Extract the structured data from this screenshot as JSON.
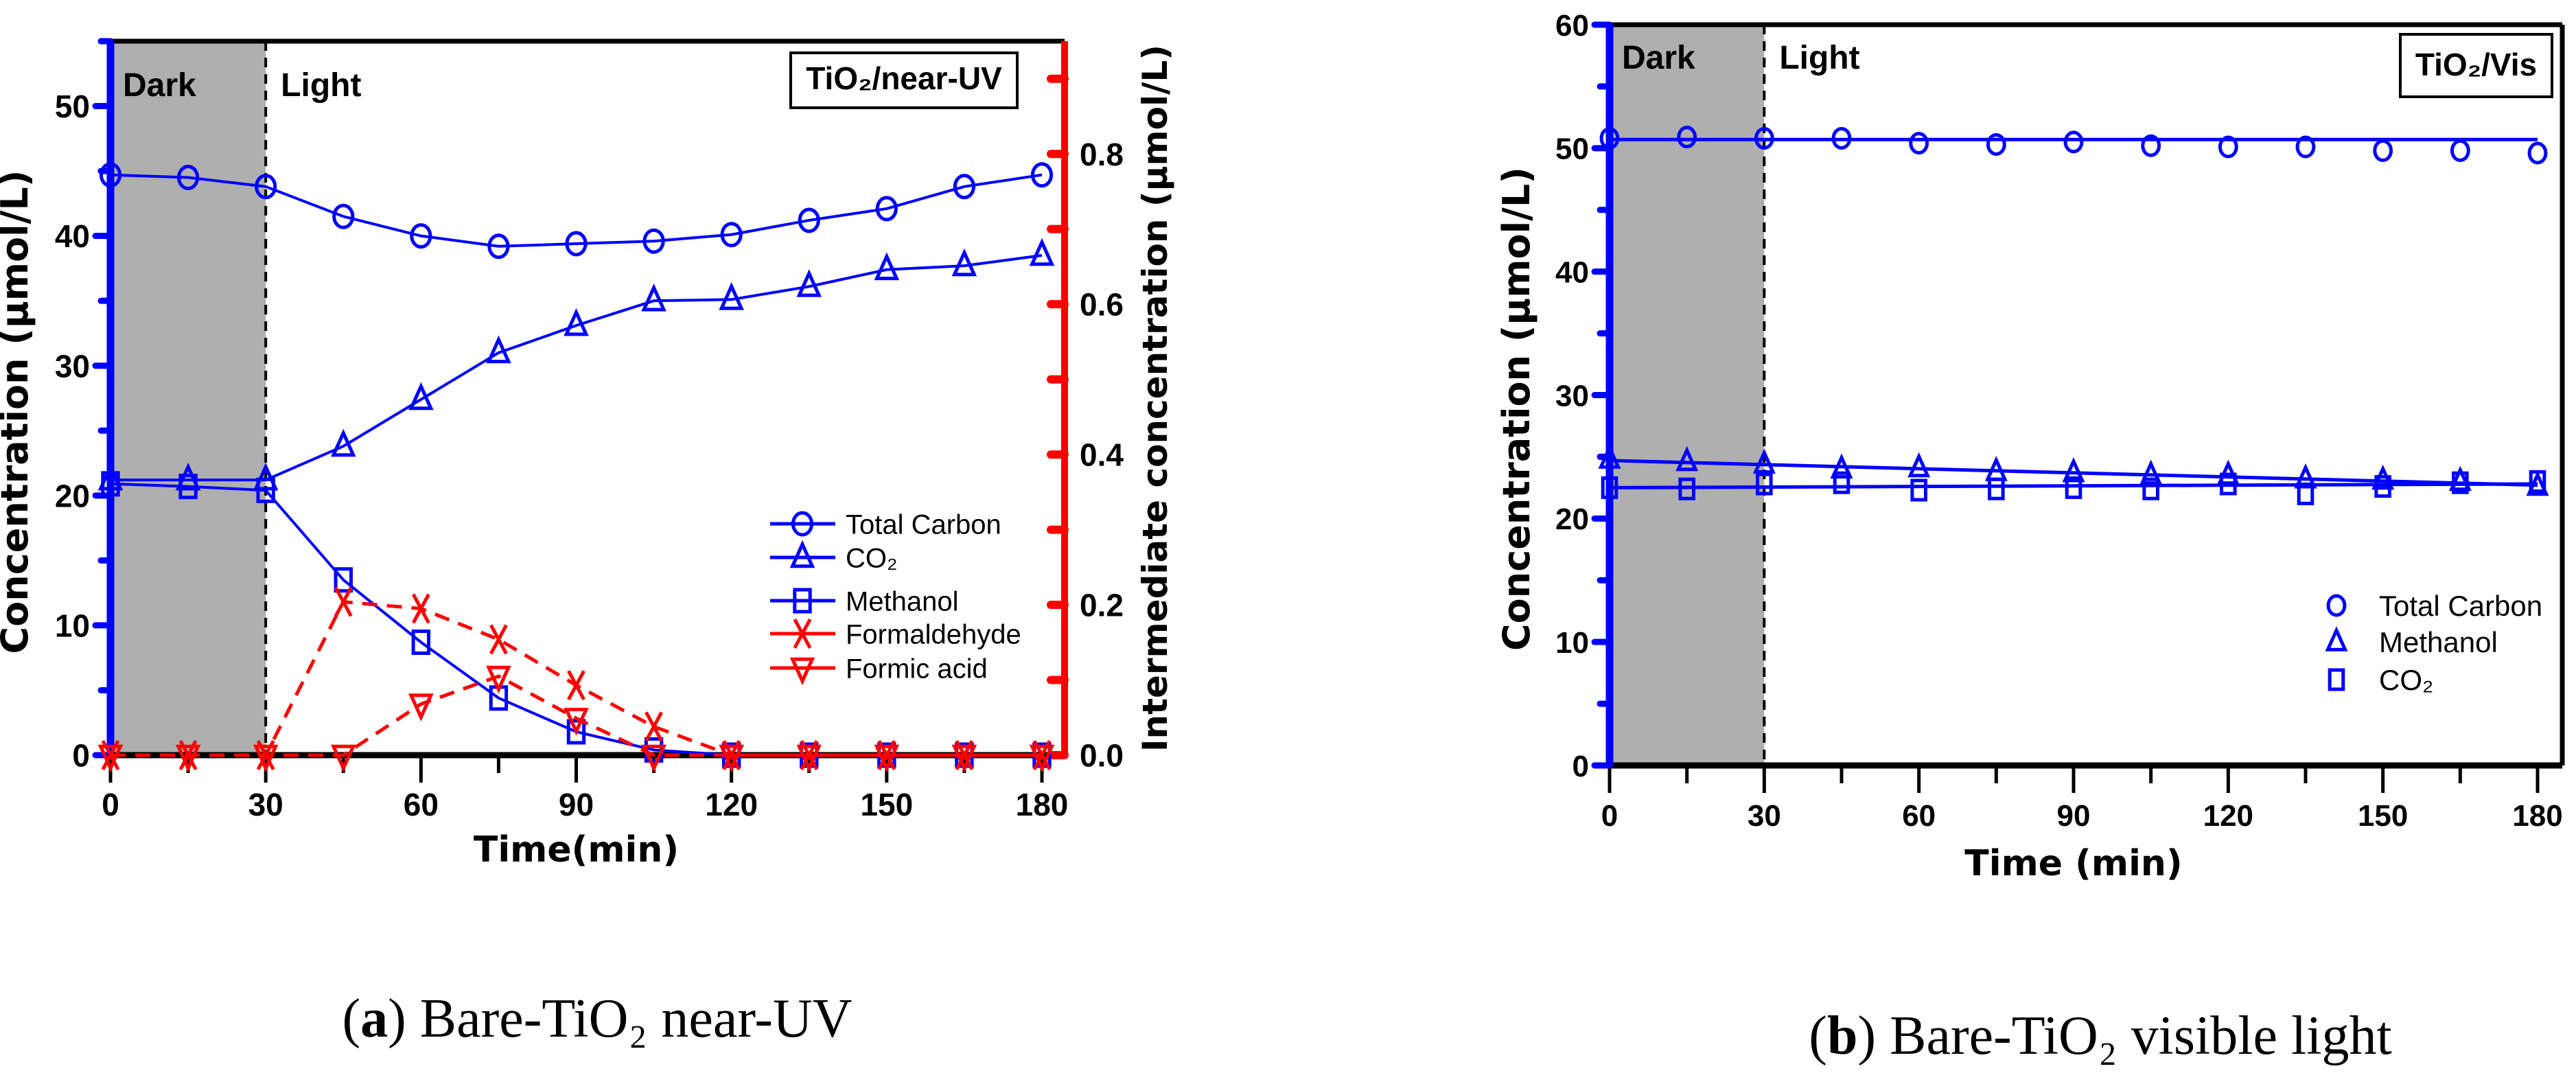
{
  "chart_data": [
    {
      "type": "line",
      "panel": "a",
      "caption": "Bare-TiO₂ near-UV",
      "box_label": "TiO₂/near-UV",
      "annotations": {
        "dark": "Dark",
        "light": "Light"
      },
      "dark_period": [
        0,
        30
      ],
      "xlabel": "Time(min)",
      "ylabel": "Concentration (µmol/L)",
      "y2label": "Intermediate concentration (µmol/L)",
      "xlim": [
        0,
        180
      ],
      "ylim": [
        0,
        55
      ],
      "y2lim": [
        0,
        0.95
      ],
      "xticks": [
        "0",
        "30",
        "60",
        "90",
        "120",
        "150",
        "180"
      ],
      "yticks": [
        "0",
        "10",
        "20",
        "30",
        "40",
        "50"
      ],
      "y2ticks": [
        "0.0",
        "0.2",
        "0.4",
        "0.6",
        "0.8"
      ],
      "legend_position": "center-right",
      "x": [
        0,
        15,
        30,
        45,
        60,
        75,
        90,
        105,
        120,
        135,
        150,
        165,
        180
      ],
      "series": [
        {
          "name": "Total Carbon",
          "axis": "left",
          "color": "#0000ff",
          "marker": "circle",
          "line": "solid",
          "values": [
            44.7,
            44.5,
            43.8,
            41.5,
            40.0,
            39.2,
            39.4,
            39.6,
            40.1,
            41.2,
            42.1,
            43.8,
            44.7
          ]
        },
        {
          "name": "CO₂",
          "axis": "left",
          "color": "#0000ff",
          "marker": "triangle",
          "line": "solid",
          "values": [
            21.2,
            21.2,
            21.2,
            23.8,
            27.4,
            31.0,
            33.1,
            35.0,
            35.1,
            36.1,
            37.4,
            37.7,
            38.5
          ]
        },
        {
          "name": "Methanol",
          "axis": "left",
          "color": "#0000ff",
          "marker": "square",
          "line": "solid",
          "values": [
            20.9,
            20.7,
            20.4,
            13.5,
            8.7,
            4.4,
            1.8,
            0.4,
            0,
            0,
            0,
            0,
            0
          ]
        },
        {
          "name": "Formaldehyde",
          "axis": "right",
          "color": "#ff0000",
          "marker": "x",
          "line": "dashed",
          "values": [
            0,
            0,
            0,
            0.204,
            0.195,
            0.154,
            0.093,
            0.038,
            0,
            0,
            0,
            0,
            0
          ]
        },
        {
          "name": "Formic acid",
          "axis": "right",
          "color": "#ff0000",
          "marker": "triangle-down",
          "line": "dashed",
          "values": [
            0,
            0,
            0,
            0,
            0.068,
            0.105,
            0.049,
            0,
            0,
            0,
            0,
            0,
            0
          ]
        }
      ]
    },
    {
      "type": "scatter",
      "panel": "b",
      "caption": "Bare-TiO₂ visible light",
      "box_label": "TiO₂/Vis",
      "annotations": {
        "dark": "Dark",
        "light": "Light"
      },
      "dark_period": [
        0,
        30
      ],
      "xlabel": "Time (min)",
      "ylabel": "Concentration (µmol/L)",
      "xlim": [
        0,
        180
      ],
      "ylim": [
        0,
        60
      ],
      "xticks": [
        "0",
        "30",
        "60",
        "90",
        "120",
        "150",
        "180"
      ],
      "yticks": [
        "0",
        "10",
        "20",
        "30",
        "40",
        "50",
        "60"
      ],
      "legend_position": "lower-right",
      "x": [
        0,
        15,
        30,
        45,
        60,
        75,
        90,
        105,
        120,
        135,
        150,
        165,
        180
      ],
      "series": [
        {
          "name": "Total Carbon",
          "color": "#0000ff",
          "marker": "circle",
          "fit": [
            50.7,
            50.7
          ],
          "values": [
            50.8,
            50.9,
            50.8,
            50.8,
            50.4,
            50.3,
            50.5,
            50.2,
            50.1,
            50.1,
            49.8,
            49.8,
            49.6
          ]
        },
        {
          "name": "Methanol",
          "color": "#0000ff",
          "marker": "triangle",
          "fit": [
            24.7,
            22.7
          ],
          "values": [
            24.8,
            24.6,
            24.4,
            24.0,
            24.1,
            23.8,
            23.7,
            23.5,
            23.5,
            23.2,
            23.1,
            23.0,
            22.6
          ]
        },
        {
          "name": "CO₂",
          "color": "#0000ff",
          "marker": "square",
          "fit": [
            22.5,
            22.8
          ],
          "values": [
            22.5,
            22.4,
            22.8,
            22.9,
            22.3,
            22.4,
            22.5,
            22.4,
            22.8,
            22.0,
            22.6,
            22.9,
            23.0
          ]
        }
      ]
    }
  ]
}
